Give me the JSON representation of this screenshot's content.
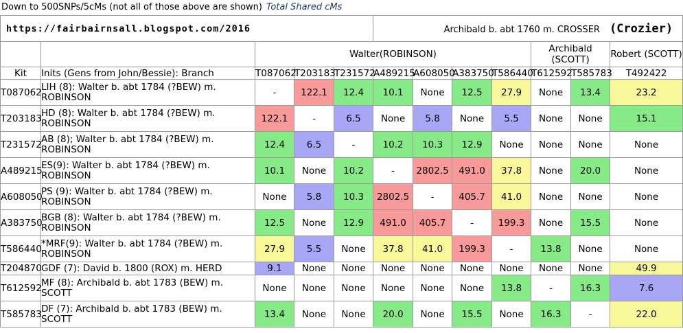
{
  "caption": {
    "text": "Down to 500SNPs/5cMs (not all of those above are shown)",
    "title": "Total Shared cMs"
  },
  "banner": {
    "url": "https://fairbairnsall.blogspot.com/2016",
    "ancestor": "Archibald b. abt 1760 m. CROSSER",
    "note": "(Crozier)"
  },
  "groups": [
    {
      "label": "Walter(ROBINSON)",
      "span": 7
    },
    {
      "label": "Archibald (SCOTT)",
      "span": 2
    },
    {
      "label": "Robert (SCOTT)",
      "span": 1
    }
  ],
  "headers": {
    "kit": "Kit",
    "inits": "Inits (Gens from John/Bessie): Branch"
  },
  "columns": [
    "T087062",
    "T203183",
    "T231572",
    "A489215",
    "A608050",
    "A383750",
    "T586440",
    "T612592",
    "T585783",
    "T492422"
  ],
  "colors": {
    "red": "#f99a9a",
    "green": "#86ea86",
    "blue": "#a7a7f5",
    "yellow": "#f8f89b",
    "none": "#ffffff"
  },
  "rows": [
    {
      "kit": "T087062",
      "desc": "LIH (8): Walter b. abt 1784 (?BEW) m. ROBINSON",
      "cells": [
        {
          "v": "-",
          "c": "none"
        },
        {
          "v": "122.1",
          "c": "red"
        },
        {
          "v": "12.4",
          "c": "green"
        },
        {
          "v": "10.1",
          "c": "green"
        },
        {
          "v": "None",
          "c": "none"
        },
        {
          "v": "12.5",
          "c": "green"
        },
        {
          "v": "27.9",
          "c": "yellow"
        },
        {
          "v": "None",
          "c": "none"
        },
        {
          "v": "13.4",
          "c": "green"
        },
        {
          "v": "23.2",
          "c": "yellow"
        }
      ]
    },
    {
      "kit": "T203183",
      "desc": "HD (8): Walter b. abt 1784 (?BEW) m. ROBINSON",
      "cells": [
        {
          "v": "122.1",
          "c": "red"
        },
        {
          "v": "-",
          "c": "none"
        },
        {
          "v": "6.5",
          "c": "blue"
        },
        {
          "v": "None",
          "c": "none"
        },
        {
          "v": "5.8",
          "c": "blue"
        },
        {
          "v": "None",
          "c": "none"
        },
        {
          "v": "5.5",
          "c": "blue"
        },
        {
          "v": "None",
          "c": "none"
        },
        {
          "v": "None",
          "c": "none"
        },
        {
          "v": "15.1",
          "c": "green"
        }
      ]
    },
    {
      "kit": "T231572",
      "desc": "AB (8); Walter b. abt 1784 (?BEW) m. ROBINSON",
      "cells": [
        {
          "v": "12.4",
          "c": "green"
        },
        {
          "v": "6.5",
          "c": "blue"
        },
        {
          "v": "-",
          "c": "none"
        },
        {
          "v": "10.2",
          "c": "green"
        },
        {
          "v": "10.3",
          "c": "green"
        },
        {
          "v": "12.9",
          "c": "green"
        },
        {
          "v": "None",
          "c": "none"
        },
        {
          "v": "None",
          "c": "none"
        },
        {
          "v": "None",
          "c": "none"
        },
        {
          "v": "None",
          "c": "none"
        }
      ]
    },
    {
      "kit": "A489215",
      "desc": "ES(9): Walter b. abt 1784 (?BEW) m. ROBINSON",
      "cells": [
        {
          "v": "10.1",
          "c": "green"
        },
        {
          "v": "None",
          "c": "none"
        },
        {
          "v": "10.2",
          "c": "green"
        },
        {
          "v": "-",
          "c": "none"
        },
        {
          "v": "2802.5",
          "c": "red"
        },
        {
          "v": "491.0",
          "c": "red"
        },
        {
          "v": "37.8",
          "c": "yellow"
        },
        {
          "v": "None",
          "c": "none"
        },
        {
          "v": "20.0",
          "c": "green"
        },
        {
          "v": "None",
          "c": "none"
        }
      ]
    },
    {
      "kit": "A608050",
      "desc": "PS (9): Walter b. abt 1784 (?BEW) m. ROBINSON",
      "cells": [
        {
          "v": "None",
          "c": "none"
        },
        {
          "v": "5.8",
          "c": "blue"
        },
        {
          "v": "10.3",
          "c": "green"
        },
        {
          "v": "2802.5",
          "c": "red"
        },
        {
          "v": "-",
          "c": "none"
        },
        {
          "v": "405.7",
          "c": "red"
        },
        {
          "v": "41.0",
          "c": "yellow"
        },
        {
          "v": "None",
          "c": "none"
        },
        {
          "v": "None",
          "c": "none"
        },
        {
          "v": "None",
          "c": "none"
        }
      ]
    },
    {
      "kit": "A383750",
      "desc": "BGB (8): Walter b. abt 1784 (?BEW) m. ROBINSON",
      "cells": [
        {
          "v": "12.5",
          "c": "green"
        },
        {
          "v": "None",
          "c": "none"
        },
        {
          "v": "12.9",
          "c": "green"
        },
        {
          "v": "491.0",
          "c": "red"
        },
        {
          "v": "405.7",
          "c": "red"
        },
        {
          "v": "-",
          "c": "none"
        },
        {
          "v": "199.3",
          "c": "red"
        },
        {
          "v": "None",
          "c": "none"
        },
        {
          "v": "15.5",
          "c": "green"
        },
        {
          "v": "None",
          "c": "none"
        }
      ]
    },
    {
      "kit": "T586440",
      "desc": "*MRF(9): Walter b. abt 1784 (?BEW) m. ROBINSON",
      "cells": [
        {
          "v": "27.9",
          "c": "yellow"
        },
        {
          "v": "5.5",
          "c": "blue"
        },
        {
          "v": "None",
          "c": "none"
        },
        {
          "v": "37.8",
          "c": "yellow"
        },
        {
          "v": "41.0",
          "c": "yellow"
        },
        {
          "v": "199.3",
          "c": "red"
        },
        {
          "v": "-",
          "c": "none"
        },
        {
          "v": "13.8",
          "c": "green"
        },
        {
          "v": "None",
          "c": "none"
        },
        {
          "v": "None",
          "c": "none"
        }
      ]
    },
    {
      "kit": "T204870",
      "desc": "GDF (7): David b. 1800 (ROX) m. HERD",
      "cells": [
        {
          "v": "9.1",
          "c": "blue"
        },
        {
          "v": "None",
          "c": "none"
        },
        {
          "v": "None",
          "c": "none"
        },
        {
          "v": "None",
          "c": "none"
        },
        {
          "v": "None",
          "c": "none"
        },
        {
          "v": "None",
          "c": "none"
        },
        {
          "v": "None",
          "c": "none"
        },
        {
          "v": "None",
          "c": "none"
        },
        {
          "v": "None",
          "c": "none"
        },
        {
          "v": "49.9",
          "c": "yellow"
        }
      ]
    },
    {
      "kit": "T612592",
      "desc": "MF (8): Archibald b. abt 1783 (BEW) m. SCOTT",
      "cells": [
        {
          "v": "None",
          "c": "none"
        },
        {
          "v": "None",
          "c": "none"
        },
        {
          "v": "None",
          "c": "none"
        },
        {
          "v": "None",
          "c": "none"
        },
        {
          "v": "None",
          "c": "none"
        },
        {
          "v": "None",
          "c": "none"
        },
        {
          "v": "13.8",
          "c": "green"
        },
        {
          "v": "-",
          "c": "none"
        },
        {
          "v": "16.3",
          "c": "green"
        },
        {
          "v": "7.6",
          "c": "blue"
        }
      ]
    },
    {
      "kit": "T585783",
      "desc": "DF (7): Archibald b. abt 1783 (BEW) m. SCOTT",
      "cells": [
        {
          "v": "13.4",
          "c": "green"
        },
        {
          "v": "None",
          "c": "none"
        },
        {
          "v": "None",
          "c": "none"
        },
        {
          "v": "20.0",
          "c": "green"
        },
        {
          "v": "None",
          "c": "none"
        },
        {
          "v": "15.5",
          "c": "green"
        },
        {
          "v": "None",
          "c": "none"
        },
        {
          "v": "16.3",
          "c": "green"
        },
        {
          "v": "-",
          "c": "none"
        },
        {
          "v": "22.0",
          "c": "yellow"
        }
      ]
    }
  ]
}
